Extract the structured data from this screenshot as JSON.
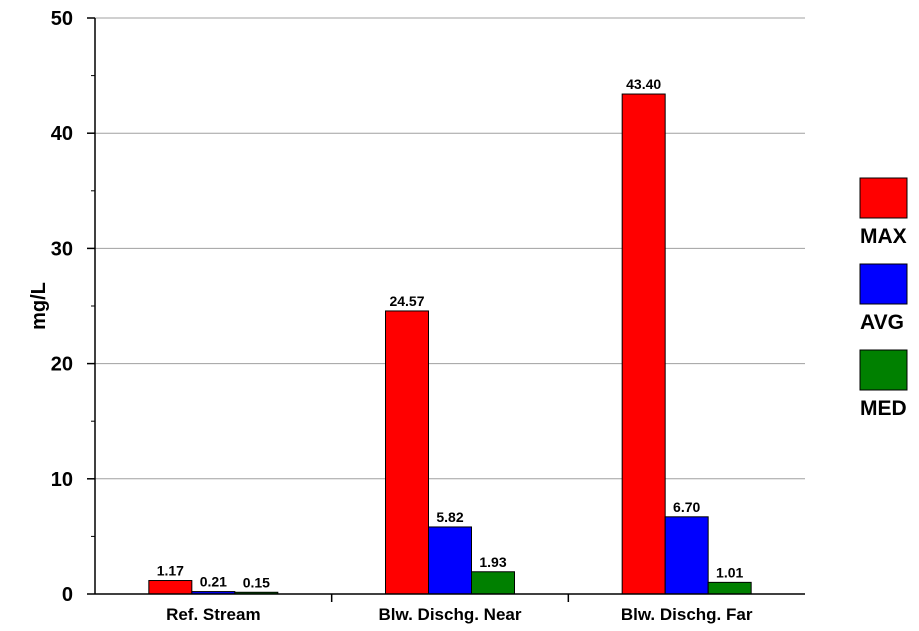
{
  "chart_data": {
    "type": "bar",
    "categories": [
      "Ref. Stream",
      "Blw. Dischg. Near",
      "Blw. Dischg. Far"
    ],
    "series": [
      {
        "name": "MAX",
        "values": [
          1.17,
          24.57,
          43.4
        ],
        "labels": [
          "1.17",
          "24.57",
          "43.40"
        ],
        "color": "#ff0000"
      },
      {
        "name": "AVG",
        "values": [
          0.21,
          5.82,
          6.7
        ],
        "labels": [
          "0.21",
          "5.82",
          "6.70"
        ],
        "color": "#0000ff"
      },
      {
        "name": "MED",
        "values": [
          0.15,
          1.93,
          1.01
        ],
        "labels": [
          "0.15",
          "1.93",
          "1.01"
        ],
        "color": "#008000"
      }
    ],
    "title": "",
    "xlabel": "",
    "ylabel": "mg/L",
    "ylim": [
      0,
      50
    ],
    "yticks": [
      "0",
      "10",
      "20",
      "30",
      "40",
      "50"
    ],
    "grid": true,
    "legend_position": "right"
  }
}
